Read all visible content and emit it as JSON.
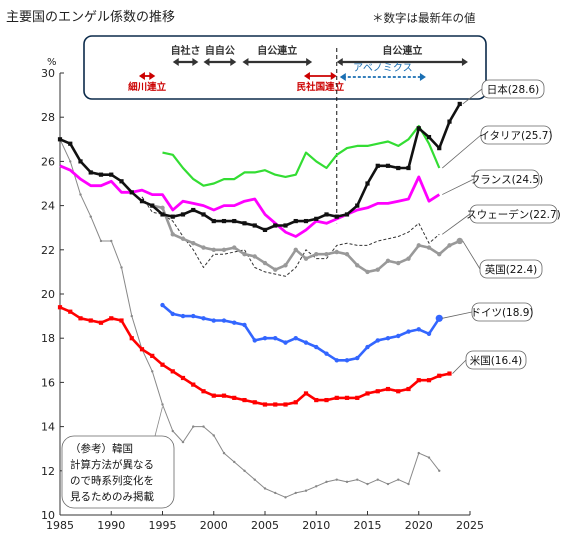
{
  "header": {
    "title": "主要国のエンゲル係数の推移",
    "note": "＊数字は最新年の値"
  },
  "colors": {
    "japan": "#111111",
    "italy": "#33dd33",
    "france": "#ff00ff",
    "sweden": "#333333",
    "uk": "#999999",
    "germany": "#3366ff",
    "usa": "#ff0000",
    "korea": "#888888",
    "highlight": "#cc0000",
    "abenomics": "#1a6fb3",
    "box_border": "#0b2a4a"
  },
  "chart_data": {
    "type": "line",
    "title": "",
    "xlabel": "",
    "ylabel": "%",
    "xlim": [
      1985,
      2025
    ],
    "ylim": [
      10,
      30
    ],
    "x_ticks": [
      1985,
      1990,
      1995,
      2000,
      2005,
      2010,
      2015,
      2020,
      2025
    ],
    "y_ticks": [
      10,
      12,
      14,
      16,
      18,
      20,
      22,
      24,
      26,
      28,
      30
    ],
    "grid": false,
    "series": [
      {
        "name": "日本(28.6)",
        "key": "japan",
        "style": "square",
        "x": [
          1985,
          1986,
          1987,
          1988,
          1989,
          1990,
          1991,
          1992,
          1993,
          1994,
          1995,
          1996,
          1997,
          1998,
          1999,
          2000,
          2001,
          2002,
          2003,
          2004,
          2005,
          2006,
          2007,
          2008,
          2009,
          2010,
          2011,
          2012,
          2013,
          2014,
          2015,
          2016,
          2017,
          2018,
          2019,
          2020,
          2021,
          2022,
          2023,
          2024
        ],
        "y": [
          27.0,
          26.8,
          26.0,
          25.5,
          25.4,
          25.4,
          25.1,
          24.6,
          24.2,
          24.0,
          23.6,
          23.5,
          23.6,
          23.8,
          23.6,
          23.3,
          23.3,
          23.3,
          23.2,
          23.1,
          22.9,
          23.1,
          23.1,
          23.3,
          23.3,
          23.4,
          23.6,
          23.5,
          23.6,
          24.0,
          25.0,
          25.8,
          25.8,
          25.7,
          25.7,
          27.5,
          27.1,
          26.6,
          27.8,
          28.6
        ]
      },
      {
        "name": "イタリア(25.7)",
        "key": "italy",
        "style": "line",
        "x": [
          1995,
          1996,
          1997,
          1998,
          1999,
          2000,
          2001,
          2002,
          2003,
          2004,
          2005,
          2006,
          2007,
          2008,
          2009,
          2010,
          2011,
          2012,
          2013,
          2014,
          2015,
          2016,
          2017,
          2018,
          2019,
          2020,
          2021,
          2022
        ],
        "y": [
          26.4,
          26.3,
          25.7,
          25.2,
          24.9,
          25.0,
          25.2,
          25.2,
          25.5,
          25.5,
          25.6,
          25.4,
          25.3,
          25.4,
          26.4,
          26.0,
          25.7,
          26.3,
          26.6,
          26.7,
          26.7,
          26.8,
          26.9,
          26.7,
          27.0,
          27.6,
          26.8,
          25.7
        ]
      },
      {
        "name": "フランス(24.5)",
        "key": "france",
        "style": "line",
        "x": [
          1985,
          1986,
          1987,
          1988,
          1989,
          1990,
          1991,
          1992,
          1993,
          1994,
          1995,
          1996,
          1997,
          1998,
          1999,
          2000,
          2001,
          2002,
          2003,
          2004,
          2005,
          2006,
          2007,
          2008,
          2009,
          2010,
          2011,
          2012,
          2013,
          2014,
          2015,
          2016,
          2017,
          2018,
          2019,
          2020,
          2021,
          2022
        ],
        "y": [
          25.8,
          25.6,
          25.2,
          24.9,
          24.9,
          25.1,
          24.6,
          24.6,
          24.7,
          24.5,
          24.5,
          23.8,
          24.2,
          24.1,
          24.0,
          23.8,
          24.0,
          24.0,
          24.2,
          24.3,
          23.6,
          23.2,
          22.8,
          22.6,
          22.9,
          23.3,
          23.2,
          23.4,
          23.6,
          23.8,
          23.9,
          24.1,
          24.1,
          24.2,
          24.3,
          25.3,
          24.2,
          24.5
        ]
      },
      {
        "name": "スウェーデン(22.7)",
        "key": "sweden",
        "style": "dashed",
        "x": [
          1993,
          1994,
          1995,
          1996,
          1997,
          1998,
          1999,
          2000,
          2001,
          2002,
          2003,
          2004,
          2005,
          2006,
          2007,
          2008,
          2009,
          2010,
          2011,
          2012,
          2013,
          2014,
          2015,
          2016,
          2017,
          2018,
          2019,
          2020,
          2021,
          2022
        ],
        "y": [
          24.4,
          23.7,
          23.6,
          23.3,
          22.6,
          22.0,
          21.2,
          21.8,
          21.8,
          21.9,
          22.0,
          21.2,
          21.0,
          20.9,
          20.8,
          21.2,
          22.0,
          21.6,
          21.6,
          22.2,
          22.3,
          22.2,
          22.2,
          22.4,
          22.5,
          22.6,
          22.8,
          23.2,
          22.3,
          22.7
        ]
      },
      {
        "name": "英国(22.4)",
        "key": "uk",
        "style": "circle",
        "x": [
          1994,
          1995,
          1996,
          1997,
          1998,
          1999,
          2000,
          2001,
          2002,
          2003,
          2004,
          2005,
          2006,
          2007,
          2008,
          2009,
          2010,
          2011,
          2012,
          2013,
          2014,
          2015,
          2016,
          2017,
          2018,
          2019,
          2020,
          2021,
          2022,
          2023,
          2024
        ],
        "y": [
          24.0,
          23.9,
          22.7,
          22.5,
          22.3,
          22.1,
          22.0,
          22.0,
          22.1,
          21.8,
          21.7,
          21.4,
          21.1,
          21.3,
          22.0,
          21.6,
          21.8,
          21.8,
          21.9,
          21.8,
          21.3,
          21.0,
          21.1,
          21.5,
          21.4,
          21.6,
          22.2,
          22.1,
          21.8,
          22.2,
          22.4
        ]
      },
      {
        "name": "ドイツ(18.9)",
        "key": "germany",
        "style": "circle",
        "x": [
          1995,
          1996,
          1997,
          1998,
          1999,
          2000,
          2001,
          2002,
          2003,
          2004,
          2005,
          2006,
          2007,
          2008,
          2009,
          2010,
          2011,
          2012,
          2013,
          2014,
          2015,
          2016,
          2017,
          2018,
          2019,
          2020,
          2021,
          2022
        ],
        "y": [
          19.5,
          19.1,
          19.0,
          19.0,
          18.9,
          18.8,
          18.8,
          18.7,
          18.6,
          17.9,
          18.0,
          18.0,
          17.8,
          18.0,
          17.8,
          17.6,
          17.3,
          17.0,
          17.0,
          17.1,
          17.6,
          17.9,
          18.0,
          18.1,
          18.3,
          18.4,
          18.2,
          18.9
        ]
      },
      {
        "name": "米国(16.4)",
        "key": "usa",
        "style": "square",
        "x": [
          1985,
          1986,
          1987,
          1988,
          1989,
          1990,
          1991,
          1992,
          1993,
          1994,
          1995,
          1996,
          1997,
          1998,
          1999,
          2000,
          2001,
          2002,
          2003,
          2004,
          2005,
          2006,
          2007,
          2008,
          2009,
          2010,
          2011,
          2012,
          2013,
          2014,
          2015,
          2016,
          2017,
          2018,
          2019,
          2020,
          2021,
          2022,
          2023
        ],
        "y": [
          19.4,
          19.2,
          18.9,
          18.8,
          18.7,
          18.9,
          18.8,
          18.0,
          17.5,
          17.2,
          16.8,
          16.5,
          16.2,
          15.9,
          15.6,
          15.4,
          15.4,
          15.3,
          15.2,
          15.1,
          15.0,
          15.0,
          15.0,
          15.1,
          15.5,
          15.2,
          15.2,
          15.3,
          15.3,
          15.3,
          15.5,
          15.6,
          15.7,
          15.6,
          15.7,
          16.1,
          16.1,
          16.3,
          16.4
        ]
      },
      {
        "name": "韓国",
        "key": "korea",
        "style": "thin",
        "x": [
          1985,
          1986,
          1987,
          1988,
          1989,
          1990,
          1991,
          1992,
          1993,
          1994,
          1995,
          1996,
          1997,
          1998,
          1999,
          2000,
          2001,
          2002,
          2003,
          2004,
          2005,
          2006,
          2007,
          2008,
          2009,
          2010,
          2011,
          2012,
          2013,
          2014,
          2015,
          2016,
          2017,
          2018,
          2019,
          2020,
          2021,
          2022
        ],
        "y": [
          27.0,
          26.0,
          24.5,
          23.5,
          22.4,
          22.4,
          21.2,
          19.0,
          17.5,
          16.5,
          15.0,
          13.8,
          13.3,
          14.0,
          14.0,
          13.6,
          12.8,
          12.4,
          12.0,
          11.6,
          11.2,
          11.0,
          10.8,
          11.0,
          11.1,
          11.3,
          11.5,
          11.6,
          11.5,
          11.6,
          11.4,
          11.6,
          11.4,
          11.6,
          11.4,
          12.8,
          12.6,
          12.0
        ]
      }
    ],
    "eras": [
      {
        "label": "細川連立",
        "from": 1992.7,
        "to": 1994.3,
        "row": "low",
        "color": "highlight"
      },
      {
        "label": "自社さ",
        "from": 1996.0,
        "to": 1998.5,
        "row": "high",
        "color": "dark"
      },
      {
        "label": "自自公",
        "from": 1999.0,
        "to": 2002.2,
        "row": "high",
        "color": "dark"
      },
      {
        "label": "自公連立",
        "from": 2002.8,
        "to": 2009.6,
        "row": "high",
        "color": "dark"
      },
      {
        "label": "民社国連立",
        "from": 2008.8,
        "to": 2012.0,
        "row": "low",
        "color": "highlight"
      },
      {
        "label": "自公連立",
        "from": 2012.0,
        "to": 2024.8,
        "row": "high",
        "color": "dark"
      },
      {
        "label": "アベノミクス",
        "from": 2012.3,
        "to": 2020.7,
        "row": "mid",
        "color": "abenomics"
      }
    ],
    "korea_note": [
      "（参考）韓国",
      "計算方法が異なる",
      "ので時系列変化を",
      "見るためのみ掲載"
    ]
  }
}
